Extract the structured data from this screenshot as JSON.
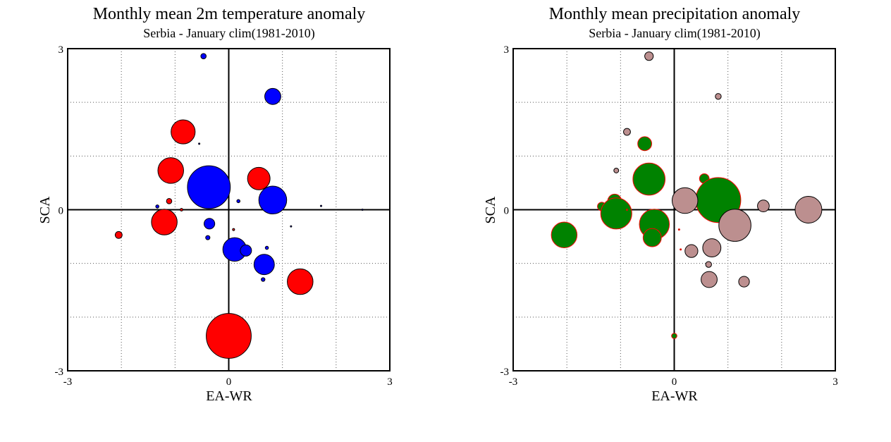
{
  "chart_data": [
    {
      "type": "scatter",
      "title": "Monthly mean 2m temperature anomaly",
      "subtitle": "Serbia - January  clim(1981-2010)",
      "xlabel": "EA-WR",
      "ylabel": "SCA",
      "xlim": [
        -3,
        3
      ],
      "ylim": [
        -3,
        3
      ],
      "x_ticks": [
        "-3",
        "0",
        "3"
      ],
      "y_ticks": [
        "3",
        "0",
        "-3"
      ],
      "grid": true,
      "grid_style": "dotted",
      "series": [
        {
          "color": "#ff0000",
          "points": [
            {
              "x": -0.85,
              "y": 1.45,
              "size": 0.45
            },
            {
              "x": -1.08,
              "y": 0.73,
              "size": 0.48
            },
            {
              "x": -0.62,
              "y": 0.45,
              "size": 0.12
            },
            {
              "x": -1.11,
              "y": 0.16,
              "size": 0.1
            },
            {
              "x": -0.88,
              "y": 0.0,
              "size": 0.05
            },
            {
              "x": -1.2,
              "y": -0.23,
              "size": 0.48
            },
            {
              "x": -2.05,
              "y": -0.47,
              "size": 0.13
            },
            {
              "x": 0.56,
              "y": 0.58,
              "size": 0.42
            },
            {
              "x": 0.09,
              "y": -0.37,
              "size": 0.04
            },
            {
              "x": 1.33,
              "y": -1.34,
              "size": 0.48
            },
            {
              "x": 0.0,
              "y": -2.35,
              "size": 0.84
            }
          ]
        },
        {
          "color": "#0000ff",
          "points": [
            {
              "x": -0.47,
              "y": 2.86,
              "size": 0.1
            },
            {
              "x": 0.82,
              "y": 2.11,
              "size": 0.3
            },
            {
              "x": -0.55,
              "y": 1.23,
              "size": 0.02
            },
            {
              "x": -0.37,
              "y": 0.42,
              "size": 0.8
            },
            {
              "x": -1.33,
              "y": 0.06,
              "size": 0.06
            },
            {
              "x": 0.18,
              "y": 0.16,
              "size": 0.06
            },
            {
              "x": 0.82,
              "y": 0.18,
              "size": 0.52
            },
            {
              "x": -0.36,
              "y": -0.26,
              "size": 0.2
            },
            {
              "x": -0.39,
              "y": -0.52,
              "size": 0.08
            },
            {
              "x": 0.11,
              "y": -0.74,
              "size": 0.44
            },
            {
              "x": 0.32,
              "y": -0.76,
              "size": 0.21
            },
            {
              "x": 0.71,
              "y": -0.71,
              "size": 0.06
            },
            {
              "x": 0.66,
              "y": -1.02,
              "size": 0.38
            },
            {
              "x": 0.64,
              "y": -1.3,
              "size": 0.07
            },
            {
              "x": 1.16,
              "y": -0.31,
              "size": 0.02
            },
            {
              "x": 1.72,
              "y": 0.07,
              "size": 0.01
            },
            {
              "x": 2.49,
              "y": 0.0,
              "size": 0.01
            }
          ]
        }
      ]
    },
    {
      "type": "scatter",
      "title": "Monthly mean precipitation anomaly",
      "subtitle": "Serbia - January  clim(1981-2010)",
      "xlabel": "EA-WR",
      "ylabel": "SCA",
      "xlim": [
        -3,
        3
      ],
      "ylim": [
        -3,
        3
      ],
      "x_ticks": [
        "-3",
        "0",
        "3"
      ],
      "y_ticks": [
        "3",
        "0",
        "-3"
      ],
      "grid": true,
      "grid_style": "dotted",
      "series": [
        {
          "color": "#008200",
          "edge": "#ff0000",
          "points": [
            {
              "x": -2.05,
              "y": -0.47,
              "size": 0.48
            },
            {
              "x": -1.35,
              "y": 0.06,
              "size": 0.16
            },
            {
              "x": -1.11,
              "y": 0.16,
              "size": 0.26
            },
            {
              "x": -1.08,
              "y": -0.07,
              "size": 0.58
            },
            {
              "x": -0.55,
              "y": 1.23,
              "size": 0.26
            },
            {
              "x": -0.47,
              "y": 0.57,
              "size": 0.6
            },
            {
              "x": -0.37,
              "y": -0.27,
              "size": 0.56
            },
            {
              "x": -0.41,
              "y": -0.52,
              "size": 0.34
            },
            {
              "x": 0.56,
              "y": 0.58,
              "size": 0.18
            },
            {
              "x": 0.82,
              "y": 0.18,
              "size": 0.84
            },
            {
              "x": 0.0,
              "y": -2.35,
              "size": 0.1
            },
            {
              "x": 0.09,
              "y": -0.37,
              "size": 0.02
            },
            {
              "x": 0.12,
              "y": -0.74,
              "size": 0.02
            },
            {
              "x": -0.88,
              "y": 0.0,
              "size": 0.01
            }
          ]
        },
        {
          "color": "#bc8f8f",
          "edge": "#000000",
          "points": [
            {
              "x": -0.47,
              "y": 2.86,
              "size": 0.16
            },
            {
              "x": 0.82,
              "y": 2.11,
              "size": 0.11
            },
            {
              "x": -0.88,
              "y": 1.45,
              "size": 0.13
            },
            {
              "x": -1.08,
              "y": 0.73,
              "size": 0.09
            },
            {
              "x": 0.2,
              "y": 0.17,
              "size": 0.48
            },
            {
              "x": 1.13,
              "y": -0.29,
              "size": 0.6
            },
            {
              "x": 1.66,
              "y": 0.07,
              "size": 0.22
            },
            {
              "x": 2.5,
              "y": 0.0,
              "size": 0.5
            },
            {
              "x": 0.32,
              "y": -0.77,
              "size": 0.24
            },
            {
              "x": 0.7,
              "y": -0.71,
              "size": 0.34
            },
            {
              "x": 0.64,
              "y": -1.02,
              "size": 0.11
            },
            {
              "x": 0.65,
              "y": -1.3,
              "size": 0.3
            },
            {
              "x": 1.3,
              "y": -1.34,
              "size": 0.2
            }
          ]
        }
      ]
    }
  ]
}
